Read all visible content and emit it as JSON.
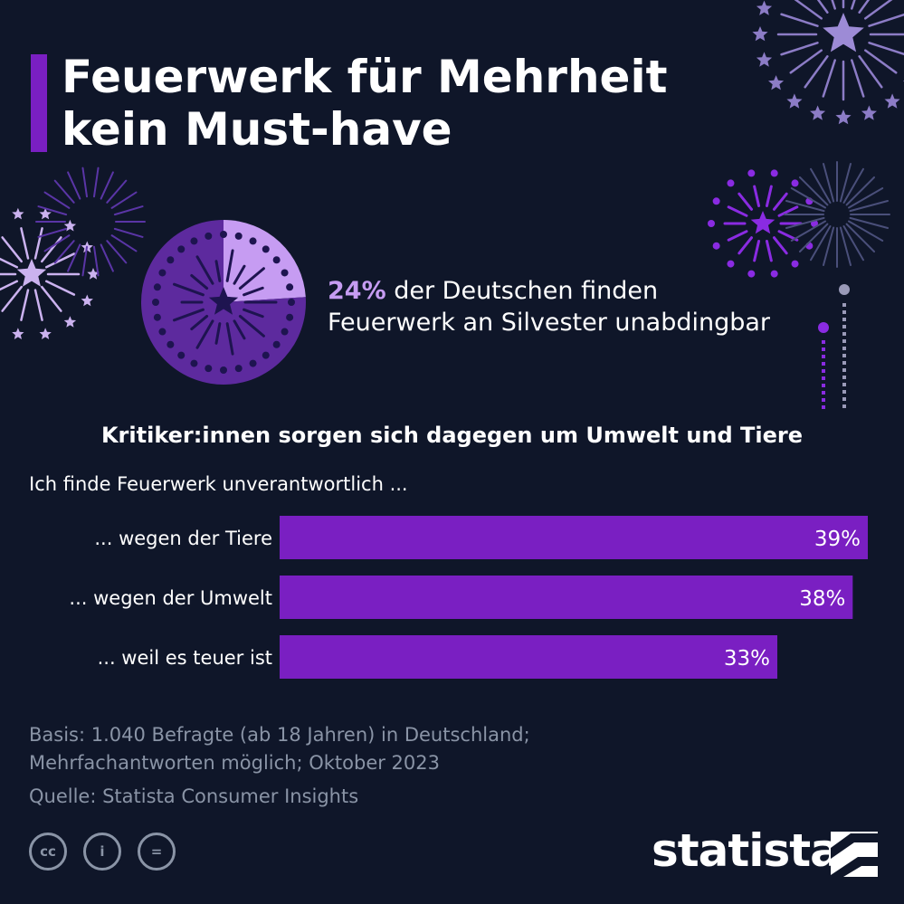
{
  "title": {
    "line1": "Feuerwerk für Mehrheit",
    "line2": "kein Must-have"
  },
  "headline": {
    "percent": "24%",
    "line1": "der Deutschen finden",
    "line2": "Feuerwerk an Silvester unabdingbar"
  },
  "subtitle": "Kritiker:innen sorgen sich dagegen um Umwelt und Tiere",
  "intro": "Ich finde Feuerwerk unverantwortlich ...",
  "footer": {
    "basis_line1": "Basis: 1.040 Befragte (ab 18 Jahren) in Deutschland;",
    "basis_line2": "Mehrfachantworten möglich; Oktober 2023",
    "source": "Quelle: Statista Consumer Insights"
  },
  "license": {
    "cc": "cc",
    "by": "i",
    "nd": "="
  },
  "logo": "statista",
  "colors": {
    "background": "#0f1629",
    "accent": "#7a1fc2",
    "highlight": "#c69cf2",
    "pie_dark": "#5d2a9e",
    "muted": "#8a94a6"
  },
  "chart_data": [
    {
      "type": "pie",
      "values": [
        24,
        76
      ],
      "value_labels": [
        "24%",
        ""
      ]
    },
    {
      "type": "bar",
      "orientation": "horizontal",
      "categories": [
        "... wegen der Tiere",
        "... wegen der Umwelt",
        "... weil es teuer ist"
      ],
      "values": [
        39,
        38,
        33
      ],
      "value_labels": [
        "39%",
        "38%",
        "33%"
      ],
      "xlim": [
        0,
        39
      ],
      "grid": false
    }
  ]
}
